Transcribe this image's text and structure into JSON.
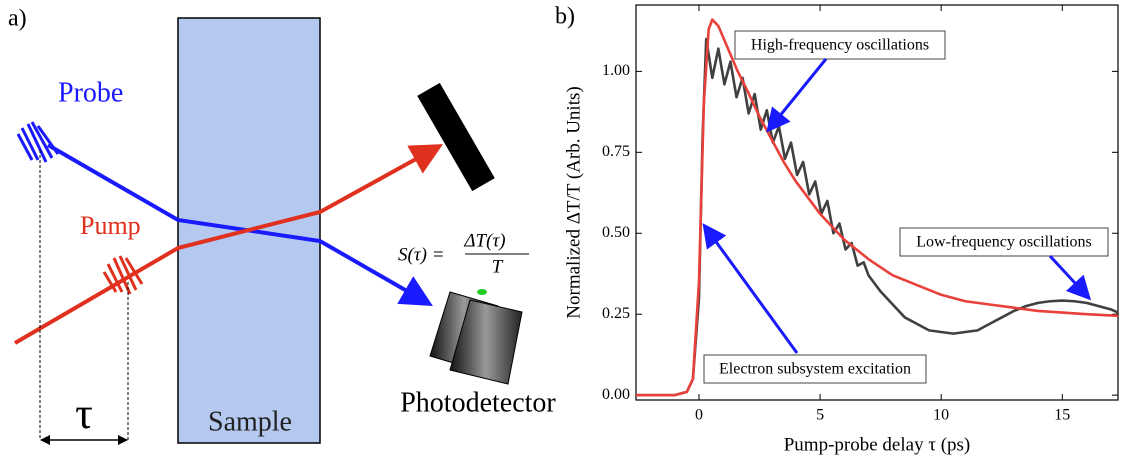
{
  "diagram": {
    "panel_label": "a)",
    "probe": "Probe",
    "pump": "Pump",
    "sample": "Sample",
    "detector": "Photodetector",
    "delay": "τ",
    "formula": {
      "lhs": "S(τ) =",
      "numerator": "ΔT(τ)",
      "denominator": "T"
    }
  },
  "chart_data": {
    "type": "line",
    "panel_label": "b)",
    "x_label": "Pump-probe delay τ (ps)",
    "y_label": "Normalized ΔT/T (Arb. Units)",
    "xlim": [
      -2.6,
      17.3
    ],
    "ylim": [
      -0.015,
      1.205
    ],
    "xticks": [
      0,
      5,
      10,
      15
    ],
    "yticks": [
      {
        "value": 0,
        "label": "0.00"
      },
      {
        "value": 0.25,
        "label": "0.25"
      },
      {
        "value": 0.5,
        "label": "0.50"
      },
      {
        "value": 0.75,
        "label": "0.75"
      },
      {
        "value": 1,
        "label": "1.00"
      }
    ],
    "series": [
      {
        "color": "#404040",
        "x": [
          -2.6,
          -1,
          -0.5,
          -0.25,
          0,
          0.15,
          0.3,
          0.55,
          0.8,
          1.05,
          1.3,
          1.55,
          1.8,
          2.05,
          2.3,
          2.55,
          2.8,
          3.05,
          3.3,
          3.55,
          3.8,
          4.05,
          4.3,
          4.55,
          4.8,
          5.05,
          5.3,
          5.55,
          5.8,
          6.05,
          6.3,
          6.55,
          6.8,
          7,
          7.5,
          8,
          8.5,
          9,
          9.5,
          10,
          10.5,
          11,
          11.5,
          12,
          12.5,
          13,
          13.5,
          14,
          14.5,
          15,
          15.5,
          16,
          16.5,
          17,
          17.3
        ],
        "values": [
          0,
          0,
          0.01,
          0.05,
          0.3,
          0.8,
          1.1,
          0.98,
          1.07,
          0.96,
          1.03,
          0.92,
          0.98,
          0.87,
          0.93,
          0.82,
          0.88,
          0.78,
          0.83,
          0.73,
          0.78,
          0.68,
          0.72,
          0.62,
          0.66,
          0.56,
          0.6,
          0.5,
          0.53,
          0.45,
          0.47,
          0.4,
          0.41,
          0.37,
          0.32,
          0.28,
          0.24,
          0.22,
          0.2,
          0.195,
          0.19,
          0.195,
          0.2,
          0.22,
          0.24,
          0.26,
          0.275,
          0.285,
          0.29,
          0.292,
          0.29,
          0.285,
          0.275,
          0.265,
          0.255
        ]
      },
      {
        "color": "#e8403a",
        "x": [
          -2.6,
          -1,
          -0.5,
          -0.25,
          0,
          0.2,
          0.4,
          0.55,
          0.8,
          1.2,
          1.6,
          2,
          2.5,
          3,
          3.5,
          4,
          5,
          6,
          7,
          8,
          9,
          10,
          11,
          12,
          13,
          14,
          15,
          16,
          17.3
        ],
        "values": [
          0,
          0,
          0.01,
          0.05,
          0.35,
          0.9,
          1.13,
          1.16,
          1.14,
          1.07,
          1.0,
          0.94,
          0.86,
          0.79,
          0.72,
          0.66,
          0.56,
          0.48,
          0.42,
          0.37,
          0.34,
          0.31,
          0.29,
          0.28,
          0.27,
          0.26,
          0.255,
          0.25,
          0.245
        ]
      }
    ],
    "annotations": [
      "High-frequency oscillations",
      "Low-frequency oscillations",
      "Electron subsystem excitation"
    ]
  }
}
